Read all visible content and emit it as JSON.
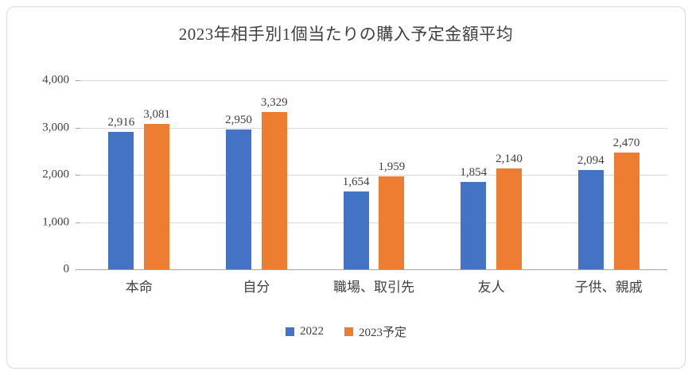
{
  "frame": {
    "background": "#ffffff",
    "border_color": "#d9d9d9",
    "gridline_color": "#d9d9d9",
    "axis_line_color": "#a6a6a6",
    "text_color": "#404040"
  },
  "chart_data": {
    "type": "bar",
    "title": "2023年相手別1個当たりの購入予定金額平均",
    "categories": [
      "本命",
      "自分",
      "職場、取引先",
      "友人",
      "子供、親戚"
    ],
    "series": [
      {
        "name": "2022",
        "color": "#4472C4",
        "values": [
          2916,
          2950,
          1654,
          1854,
          2094
        ]
      },
      {
        "name": "2023予定",
        "color": "#ED7D31",
        "values": [
          3081,
          3329,
          1959,
          2140,
          2470
        ]
      }
    ],
    "xlabel": "",
    "ylabel": "",
    "ylim": [
      0,
      4000
    ],
    "ytick_interval": 1000,
    "ytick_labels": [
      "0",
      "1,000",
      "2,000",
      "3,000",
      "4,000"
    ],
    "grid": true,
    "data_labels": true,
    "legend_position": "bottom"
  }
}
